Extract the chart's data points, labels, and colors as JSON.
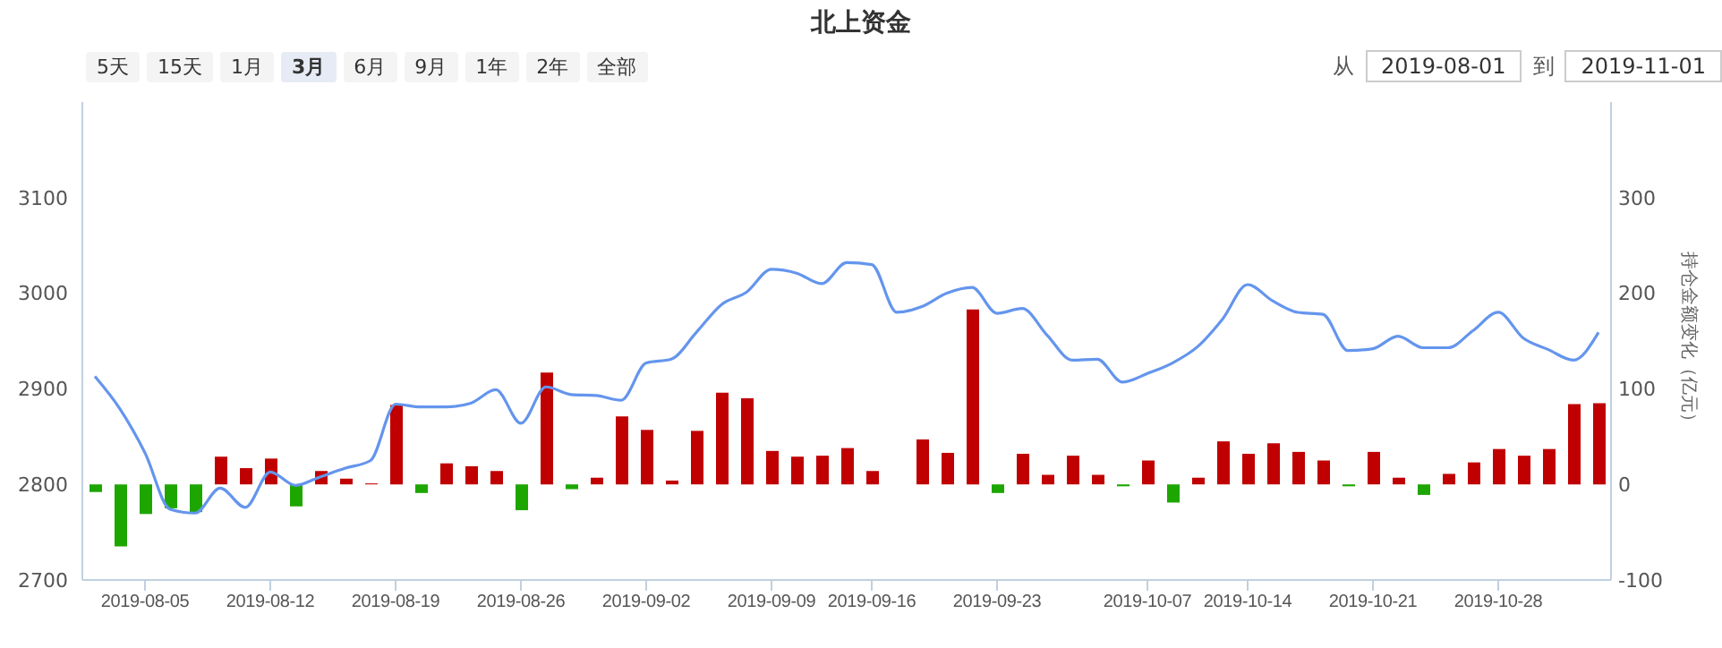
{
  "chart_data": {
    "type": "bar",
    "title": "北上资金",
    "y2label": "持仓金额变化（亿元）",
    "categories": [
      null,
      null,
      "2019-08-05",
      null,
      null,
      null,
      null,
      "2019-08-12",
      null,
      null,
      null,
      null,
      "2019-08-19",
      null,
      null,
      null,
      null,
      "2019-08-26",
      null,
      null,
      null,
      null,
      "2019-09-02",
      null,
      null,
      null,
      null,
      "2019-09-09",
      null,
      null,
      null,
      "2019-09-16",
      null,
      null,
      null,
      null,
      "2019-09-23",
      null,
      null,
      null,
      null,
      null,
      "2019-10-07",
      null,
      null,
      null,
      "2019-10-14",
      null,
      null,
      null,
      null,
      "2019-10-21",
      null,
      null,
      null,
      null,
      "2019-10-28",
      null,
      null,
      null,
      null
    ],
    "series": [
      {
        "axis": "y2",
        "values": [
          -8,
          -65,
          -31,
          -25,
          -29,
          29,
          17,
          27,
          -23,
          14,
          6,
          1,
          83,
          -9,
          22,
          19,
          14,
          -27,
          117,
          -5,
          7,
          71,
          57,
          4,
          56,
          96,
          90,
          35,
          29,
          30,
          38,
          14,
          null,
          47,
          33,
          183,
          -9,
          32,
          10,
          30,
          10,
          -2,
          25,
          -19,
          7,
          45,
          32,
          43,
          34,
          25,
          -2,
          34,
          7,
          -11,
          11,
          23,
          37,
          30,
          37,
          84,
          85
        ],
        "colors": [
          "#1ea600",
          "#1ea600",
          "#1ea600",
          "#1ea600",
          "#1ea600",
          "#c00000",
          "#c00000",
          "#c00000",
          "#1ea600",
          "#c00000",
          "#c00000",
          "#c00000",
          "#c00000",
          "#1ea600",
          "#c00000",
          "#c00000",
          "#c00000",
          "#1ea600",
          "#c00000",
          "#1ea600",
          "#c00000",
          "#c00000",
          "#c00000",
          "#c00000",
          "#c00000",
          "#c00000",
          "#c00000",
          "#c00000",
          "#c00000",
          "#c00000",
          "#c00000",
          "#c00000",
          "#c00000",
          "#c00000",
          "#c00000",
          "#c00000",
          "#1ea600",
          "#c00000",
          "#c00000",
          "#c00000",
          "#c00000",
          "#1ea600",
          "#c00000",
          "#1ea600",
          "#c00000",
          "#c00000",
          "#c00000",
          "#c00000",
          "#c00000",
          "#c00000",
          "#1ea600",
          "#c00000",
          "#c00000",
          "#1ea600",
          "#c00000",
          "#c00000",
          "#c00000",
          "#c00000",
          "#c00000",
          "#c00000",
          "#c00000"
        ]
      },
      {
        "type": "line",
        "color": "#6495ed",
        "values": [
          2913,
          2879,
          2833,
          2774,
          2770,
          2796,
          2776,
          2813,
          2799,
          2808,
          2817,
          2825,
          2884,
          2881,
          2881,
          2885,
          2899,
          2864,
          2902,
          2894,
          2893,
          2888,
          2927,
          2931,
          2959,
          2988,
          3001,
          3025,
          3021,
          3010,
          3032,
          3030,
          2980,
          2986,
          3000,
          3006,
          2979,
          2984,
          2956,
          2930,
          2931,
          2907,
          2916,
          2927,
          2944,
          2973,
          3009,
          2992,
          2980,
          2978,
          2940,
          2942,
          2955,
          2943,
          2943,
          2961,
          2980,
          2953,
          2941,
          2930,
          2959
        ]
      }
    ],
    "ylim": [
      2700,
      3200
    ],
    "yticks": [
      2700,
      2800,
      2900,
      3000,
      3100
    ],
    "y2lim": [
      -100,
      400
    ],
    "y2ticks": [
      -100,
      0,
      100,
      200,
      300
    ],
    "grid": false,
    "legend": false,
    "marker": "none",
    "annotations": [
      "5天",
      "15天",
      "1月",
      "3月",
      "6月",
      "9月",
      "1年",
      "2年",
      "全部",
      "从",
      "2019-08-01",
      "到",
      "2019-11-01"
    ]
  }
}
